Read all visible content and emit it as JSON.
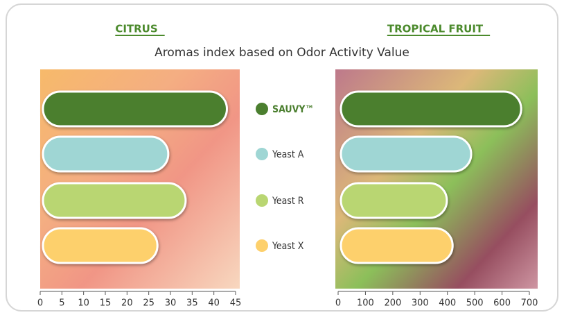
{
  "title": "Aromas index based on Odor Activity Value",
  "chart_data": [
    {
      "type": "bar",
      "orientation": "horizontal",
      "title": "CITRUS",
      "categories": [
        "SAUVY™",
        "Yeast A",
        "Yeast R",
        "Yeast X"
      ],
      "colors": [
        "#4b7f2f",
        "#9fd6d4",
        "#b9d672",
        "#fdd06c"
      ],
      "values": [
        43,
        29.5,
        33.5,
        27
      ],
      "xlim": [
        0,
        45
      ],
      "xticks": [
        0,
        5,
        10,
        15,
        20,
        25,
        30,
        35,
        40,
        45
      ]
    },
    {
      "type": "bar",
      "orientation": "horizontal",
      "title": "TROPICAL FRUIT",
      "values": [
        670,
        487,
        398,
        419
      ],
      "xlim": [
        0,
        700
      ],
      "xticks": [
        0,
        100,
        200,
        300,
        400,
        500,
        600,
        700
      ]
    }
  ]
}
